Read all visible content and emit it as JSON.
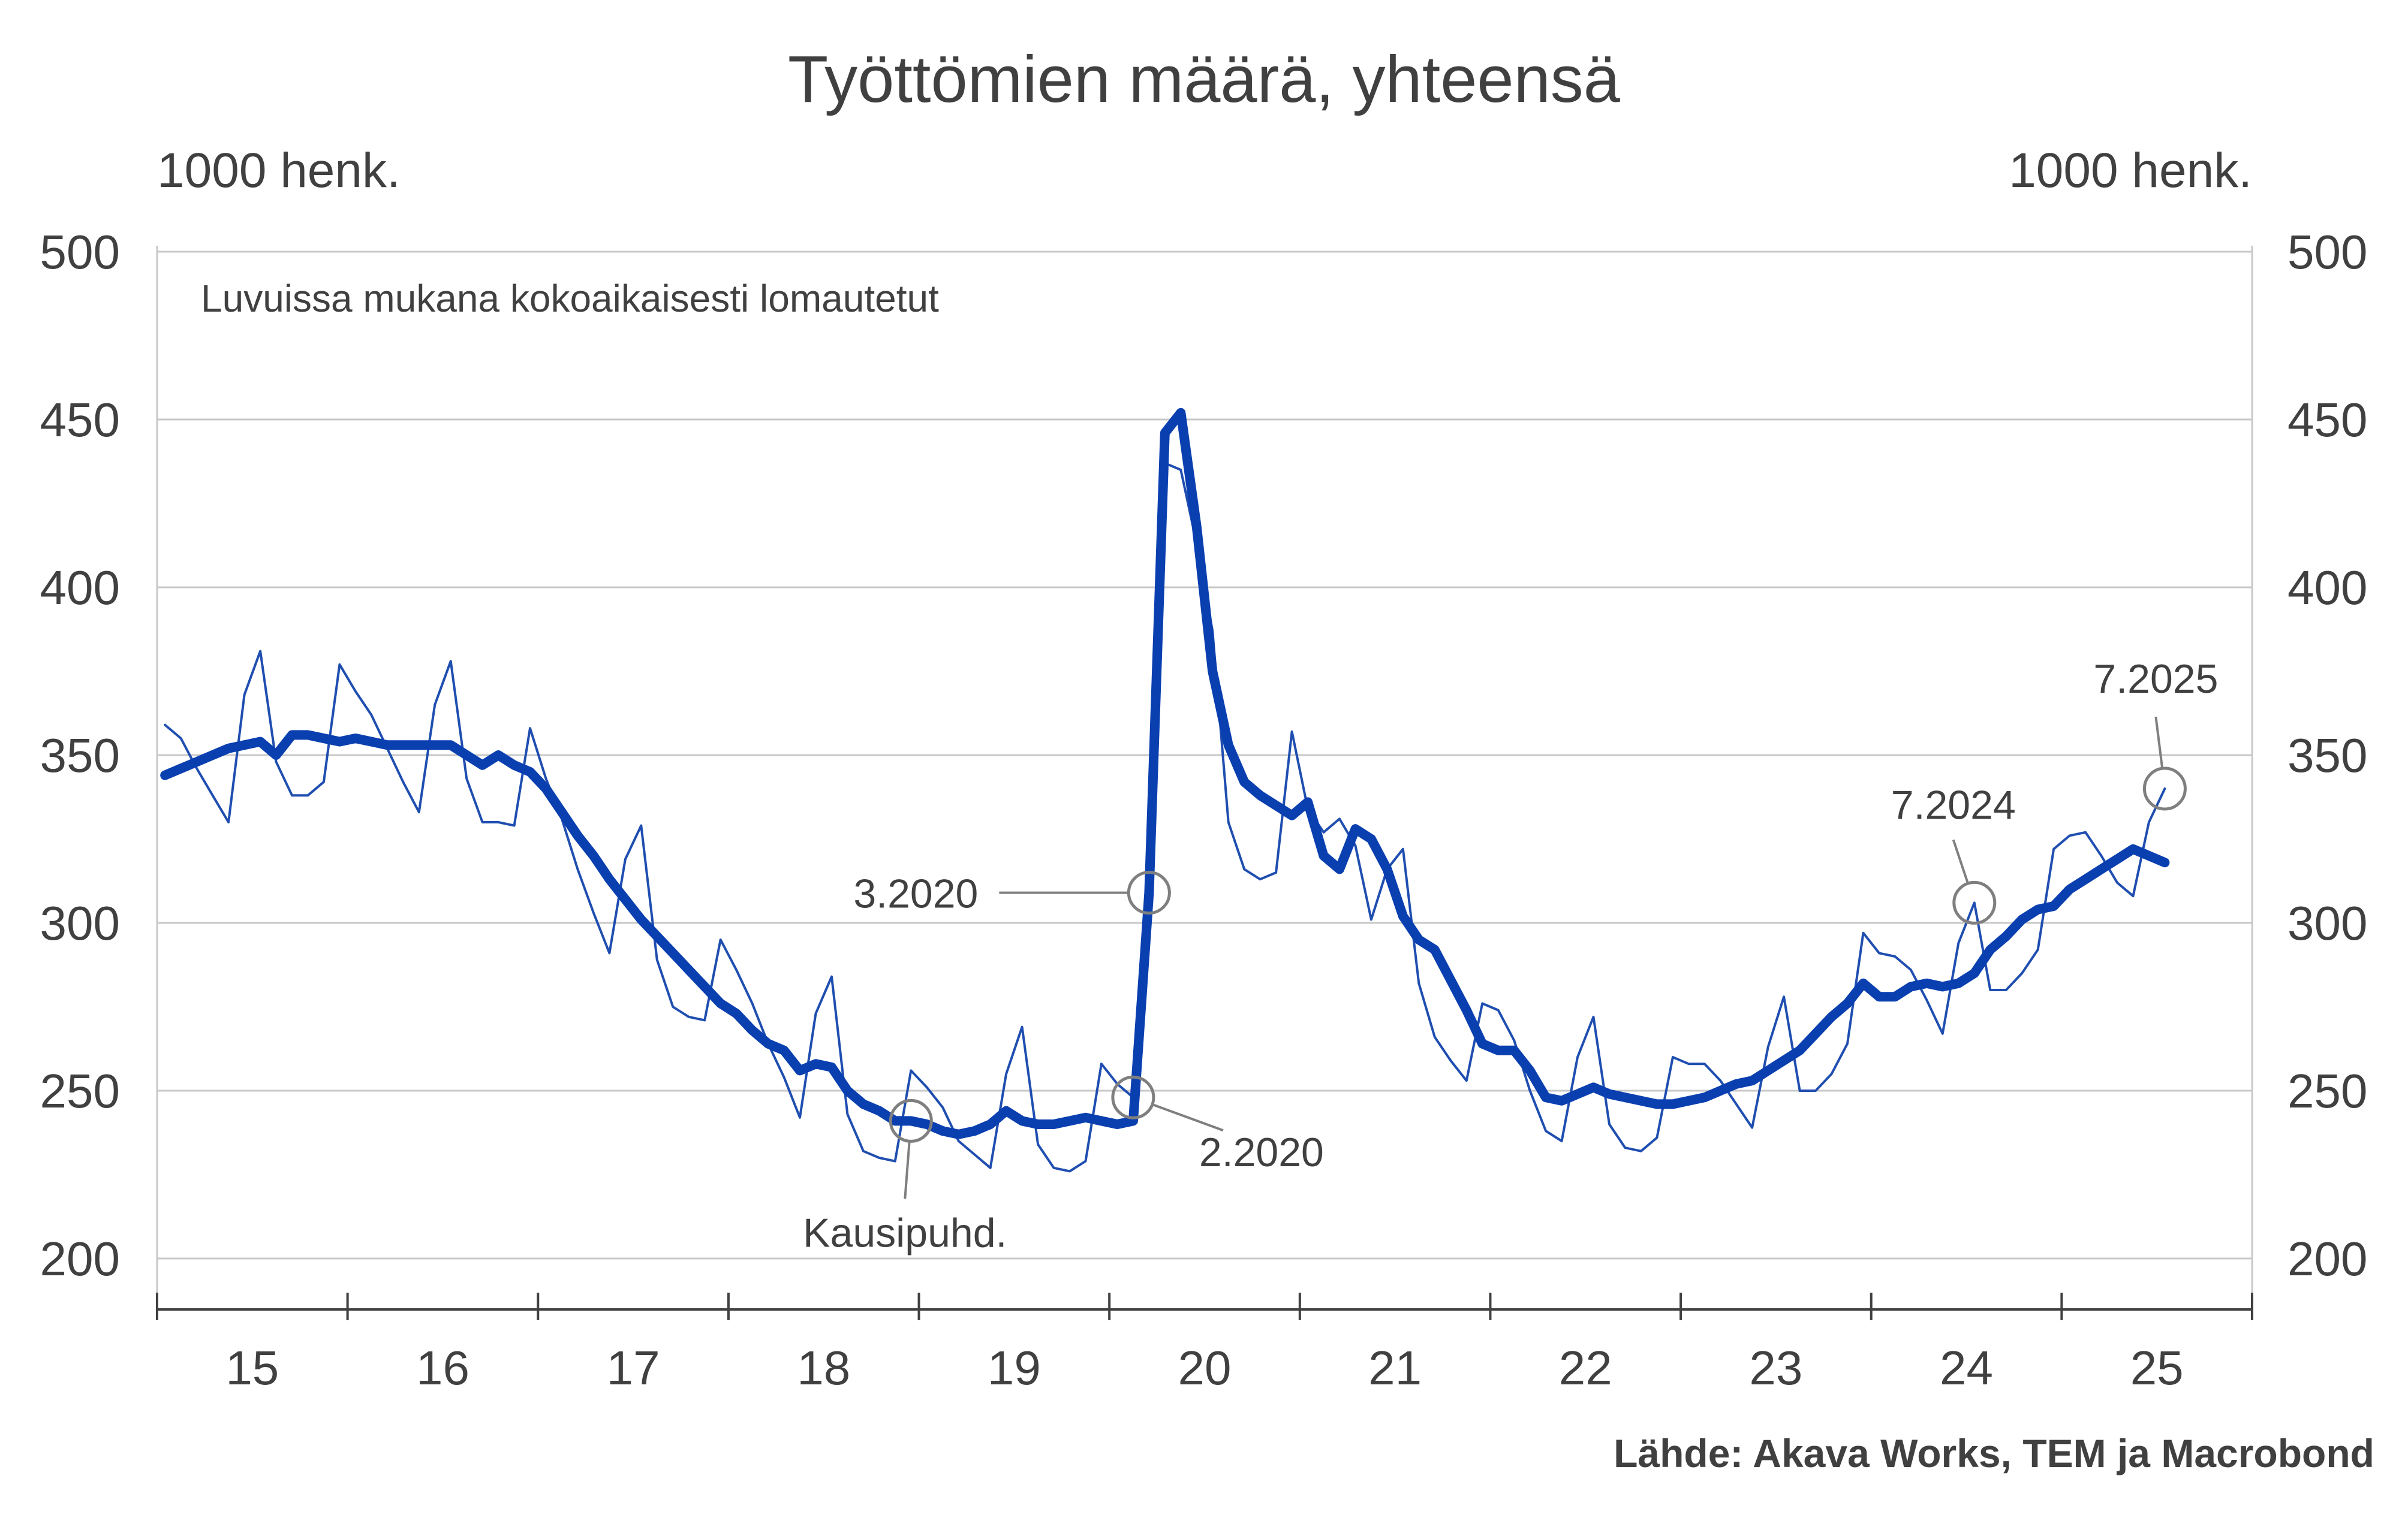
{
  "title": "Työttömien määrä, yhteensä",
  "unit_left": "1000 henk.",
  "unit_right": "1000 henk.",
  "note": "Luvuissa mukana kokoaikaisesti lomautetut",
  "source": "Lähde: Akava Works, TEM ja Macrobond",
  "colors": {
    "original": "#1f4eb0",
    "trend": "#0a3fb0",
    "annotation": "#7f7f7f"
  },
  "chart_data": {
    "type": "line",
    "title": "Työttömien määrä, yhteensä",
    "ylabel": "1000 henk.",
    "ylim": [
      200,
      500
    ],
    "y_ticks": [
      200,
      250,
      300,
      350,
      400,
      450,
      500
    ],
    "x_range": [
      "2015-01",
      "2025-12"
    ],
    "x_tick_labels": [
      "15",
      "16",
      "17",
      "18",
      "19",
      "20",
      "21",
      "22",
      "23",
      "24",
      "25"
    ],
    "grid": true,
    "series": [
      {
        "name": "original",
        "x": [
          "2015-01",
          "2015-02",
          "2015-03",
          "2015-04",
          "2015-05",
          "2015-06",
          "2015-07",
          "2015-08",
          "2015-09",
          "2015-10",
          "2015-11",
          "2015-12",
          "2016-01",
          "2016-02",
          "2016-03",
          "2016-04",
          "2016-05",
          "2016-06",
          "2016-07",
          "2016-08",
          "2016-09",
          "2016-10",
          "2016-11",
          "2016-12",
          "2017-01",
          "2017-02",
          "2017-03",
          "2017-04",
          "2017-05",
          "2017-06",
          "2017-07",
          "2017-08",
          "2017-09",
          "2017-10",
          "2017-11",
          "2017-12",
          "2018-01",
          "2018-02",
          "2018-03",
          "2018-04",
          "2018-05",
          "2018-06",
          "2018-07",
          "2018-08",
          "2018-09",
          "2018-10",
          "2018-11",
          "2018-12",
          "2019-01",
          "2019-02",
          "2019-03",
          "2019-04",
          "2019-05",
          "2019-06",
          "2019-07",
          "2019-08",
          "2019-09",
          "2019-10",
          "2019-11",
          "2019-12",
          "2020-01",
          "2020-02",
          "2020-03",
          "2020-04",
          "2020-05",
          "2020-06",
          "2020-07",
          "2020-08",
          "2020-09",
          "2020-10",
          "2020-11",
          "2020-12",
          "2021-01",
          "2021-02",
          "2021-03",
          "2021-04",
          "2021-05",
          "2021-06",
          "2021-07",
          "2021-08",
          "2021-09",
          "2021-10",
          "2021-11",
          "2021-12",
          "2022-01",
          "2022-02",
          "2022-03",
          "2022-04",
          "2022-05",
          "2022-06",
          "2022-07",
          "2022-08",
          "2022-09",
          "2022-10",
          "2022-11",
          "2022-12",
          "2023-01",
          "2023-02",
          "2023-03",
          "2023-04",
          "2023-05",
          "2023-06",
          "2023-07",
          "2023-08",
          "2023-09",
          "2023-10",
          "2023-11",
          "2023-12",
          "2024-01",
          "2024-02",
          "2024-03",
          "2024-04",
          "2024-05",
          "2024-06",
          "2024-07",
          "2024-08",
          "2024-09",
          "2024-10",
          "2024-11",
          "2024-12",
          "2025-01",
          "2025-02",
          "2025-03",
          "2025-04",
          "2025-05",
          "2025-06",
          "2025-07"
        ],
        "values": [
          359,
          355,
          346,
          338,
          330,
          368,
          381,
          348,
          338,
          338,
          342,
          377,
          369,
          362,
          352,
          342,
          333,
          365,
          378,
          343,
          330,
          330,
          329,
          358,
          343,
          331,
          316,
          303,
          291,
          319,
          329,
          289,
          275,
          272,
          271,
          295,
          286,
          276,
          264,
          254,
          242,
          273,
          284,
          243,
          232,
          230,
          229,
          256,
          251,
          245,
          235,
          231,
          227,
          255,
          269,
          234,
          227,
          226,
          229,
          258,
          252,
          248,
          309,
          437,
          435,
          413,
          387,
          330,
          316,
          313,
          315,
          357,
          334,
          327,
          331,
          323,
          301,
          316,
          322,
          282,
          266,
          259,
          253,
          276,
          274,
          265,
          250,
          238,
          235,
          260,
          272,
          240,
          233,
          232,
          236,
          260,
          258,
          258,
          253,
          246,
          239,
          263,
          278,
          250,
          250,
          255,
          264,
          297,
          291,
          290,
          286,
          277,
          267,
          294,
          306,
          280,
          280,
          285,
          292,
          322,
          326,
          327,
          320,
          312,
          308,
          330,
          340
        ]
      },
      {
        "name": "Kausipuhd.",
        "x": [
          "2015-01",
          "2015-02",
          "2015-03",
          "2015-04",
          "2015-05",
          "2015-06",
          "2015-07",
          "2015-08",
          "2015-09",
          "2015-10",
          "2015-11",
          "2015-12",
          "2016-01",
          "2016-02",
          "2016-03",
          "2016-04",
          "2016-05",
          "2016-06",
          "2016-07",
          "2016-08",
          "2016-09",
          "2016-10",
          "2016-11",
          "2016-12",
          "2017-01",
          "2017-02",
          "2017-03",
          "2017-04",
          "2017-05",
          "2017-06",
          "2017-07",
          "2017-08",
          "2017-09",
          "2017-10",
          "2017-11",
          "2017-12",
          "2018-01",
          "2018-02",
          "2018-03",
          "2018-04",
          "2018-05",
          "2018-06",
          "2018-07",
          "2018-08",
          "2018-09",
          "2018-10",
          "2018-11",
          "2018-12",
          "2019-01",
          "2019-02",
          "2019-03",
          "2019-04",
          "2019-05",
          "2019-06",
          "2019-07",
          "2019-08",
          "2019-09",
          "2019-10",
          "2019-11",
          "2019-12",
          "2020-01",
          "2020-02",
          "2020-03",
          "2020-04",
          "2020-05",
          "2020-06",
          "2020-07",
          "2020-08",
          "2020-09",
          "2020-10",
          "2020-11",
          "2020-12",
          "2021-01",
          "2021-02",
          "2021-03",
          "2021-04",
          "2021-05",
          "2021-06",
          "2021-07",
          "2021-08",
          "2021-09",
          "2021-10",
          "2021-11",
          "2021-12",
          "2022-01",
          "2022-02",
          "2022-03",
          "2022-04",
          "2022-05",
          "2022-06",
          "2022-07",
          "2022-08",
          "2022-09",
          "2022-10",
          "2022-11",
          "2022-12",
          "2023-01",
          "2023-02",
          "2023-03",
          "2023-04",
          "2023-05",
          "2023-06",
          "2023-07",
          "2023-08",
          "2023-09",
          "2023-10",
          "2023-11",
          "2023-12",
          "2024-01",
          "2024-02",
          "2024-03",
          "2024-04",
          "2024-05",
          "2024-06",
          "2024-07",
          "2024-08",
          "2024-09",
          "2024-10",
          "2024-11",
          "2024-12",
          "2025-01",
          "2025-02",
          "2025-03",
          "2025-04",
          "2025-05",
          "2025-06",
          "2025-07"
        ],
        "values": [
          344,
          346,
          348,
          350,
          352,
          353,
          354,
          350,
          356,
          356,
          355,
          354,
          355,
          354,
          353,
          353,
          353,
          353,
          353,
          350,
          347,
          350,
          347,
          345,
          340,
          333,
          326,
          320,
          313,
          307,
          301,
          296,
          291,
          286,
          281,
          276,
          273,
          268,
          264,
          262,
          256,
          258,
          257,
          250,
          246,
          244,
          241,
          241,
          240,
          238,
          237,
          238,
          240,
          244,
          241,
          240,
          240,
          241,
          242,
          241,
          240,
          241,
          309,
          446,
          452,
          418,
          375,
          353,
          342,
          338,
          335,
          332,
          336,
          320,
          316,
          328,
          325,
          316,
          302,
          295,
          292,
          283,
          274,
          264,
          262,
          262,
          256,
          248,
          247,
          249,
          251,
          249,
          248,
          247,
          246,
          246,
          247,
          248,
          250,
          252,
          253,
          256,
          259,
          262,
          267,
          272,
          276,
          282,
          278,
          278,
          281,
          282,
          281,
          282,
          285,
          292,
          296,
          301,
          304,
          305,
          310,
          313,
          316,
          319,
          322,
          320,
          318
        ]
      }
    ],
    "annotations": [
      {
        "label": "3.2020",
        "x": "2020-03",
        "y": 309
      },
      {
        "label": "2.2020",
        "x": "2020-02",
        "y": 248
      },
      {
        "label": "Kausipuhd.",
        "x": "2018-12",
        "y": 241
      },
      {
        "label": "7.2024",
        "x": "2024-07",
        "y": 306
      },
      {
        "label": "7.2025",
        "x": "2025-07",
        "y": 340
      }
    ]
  }
}
